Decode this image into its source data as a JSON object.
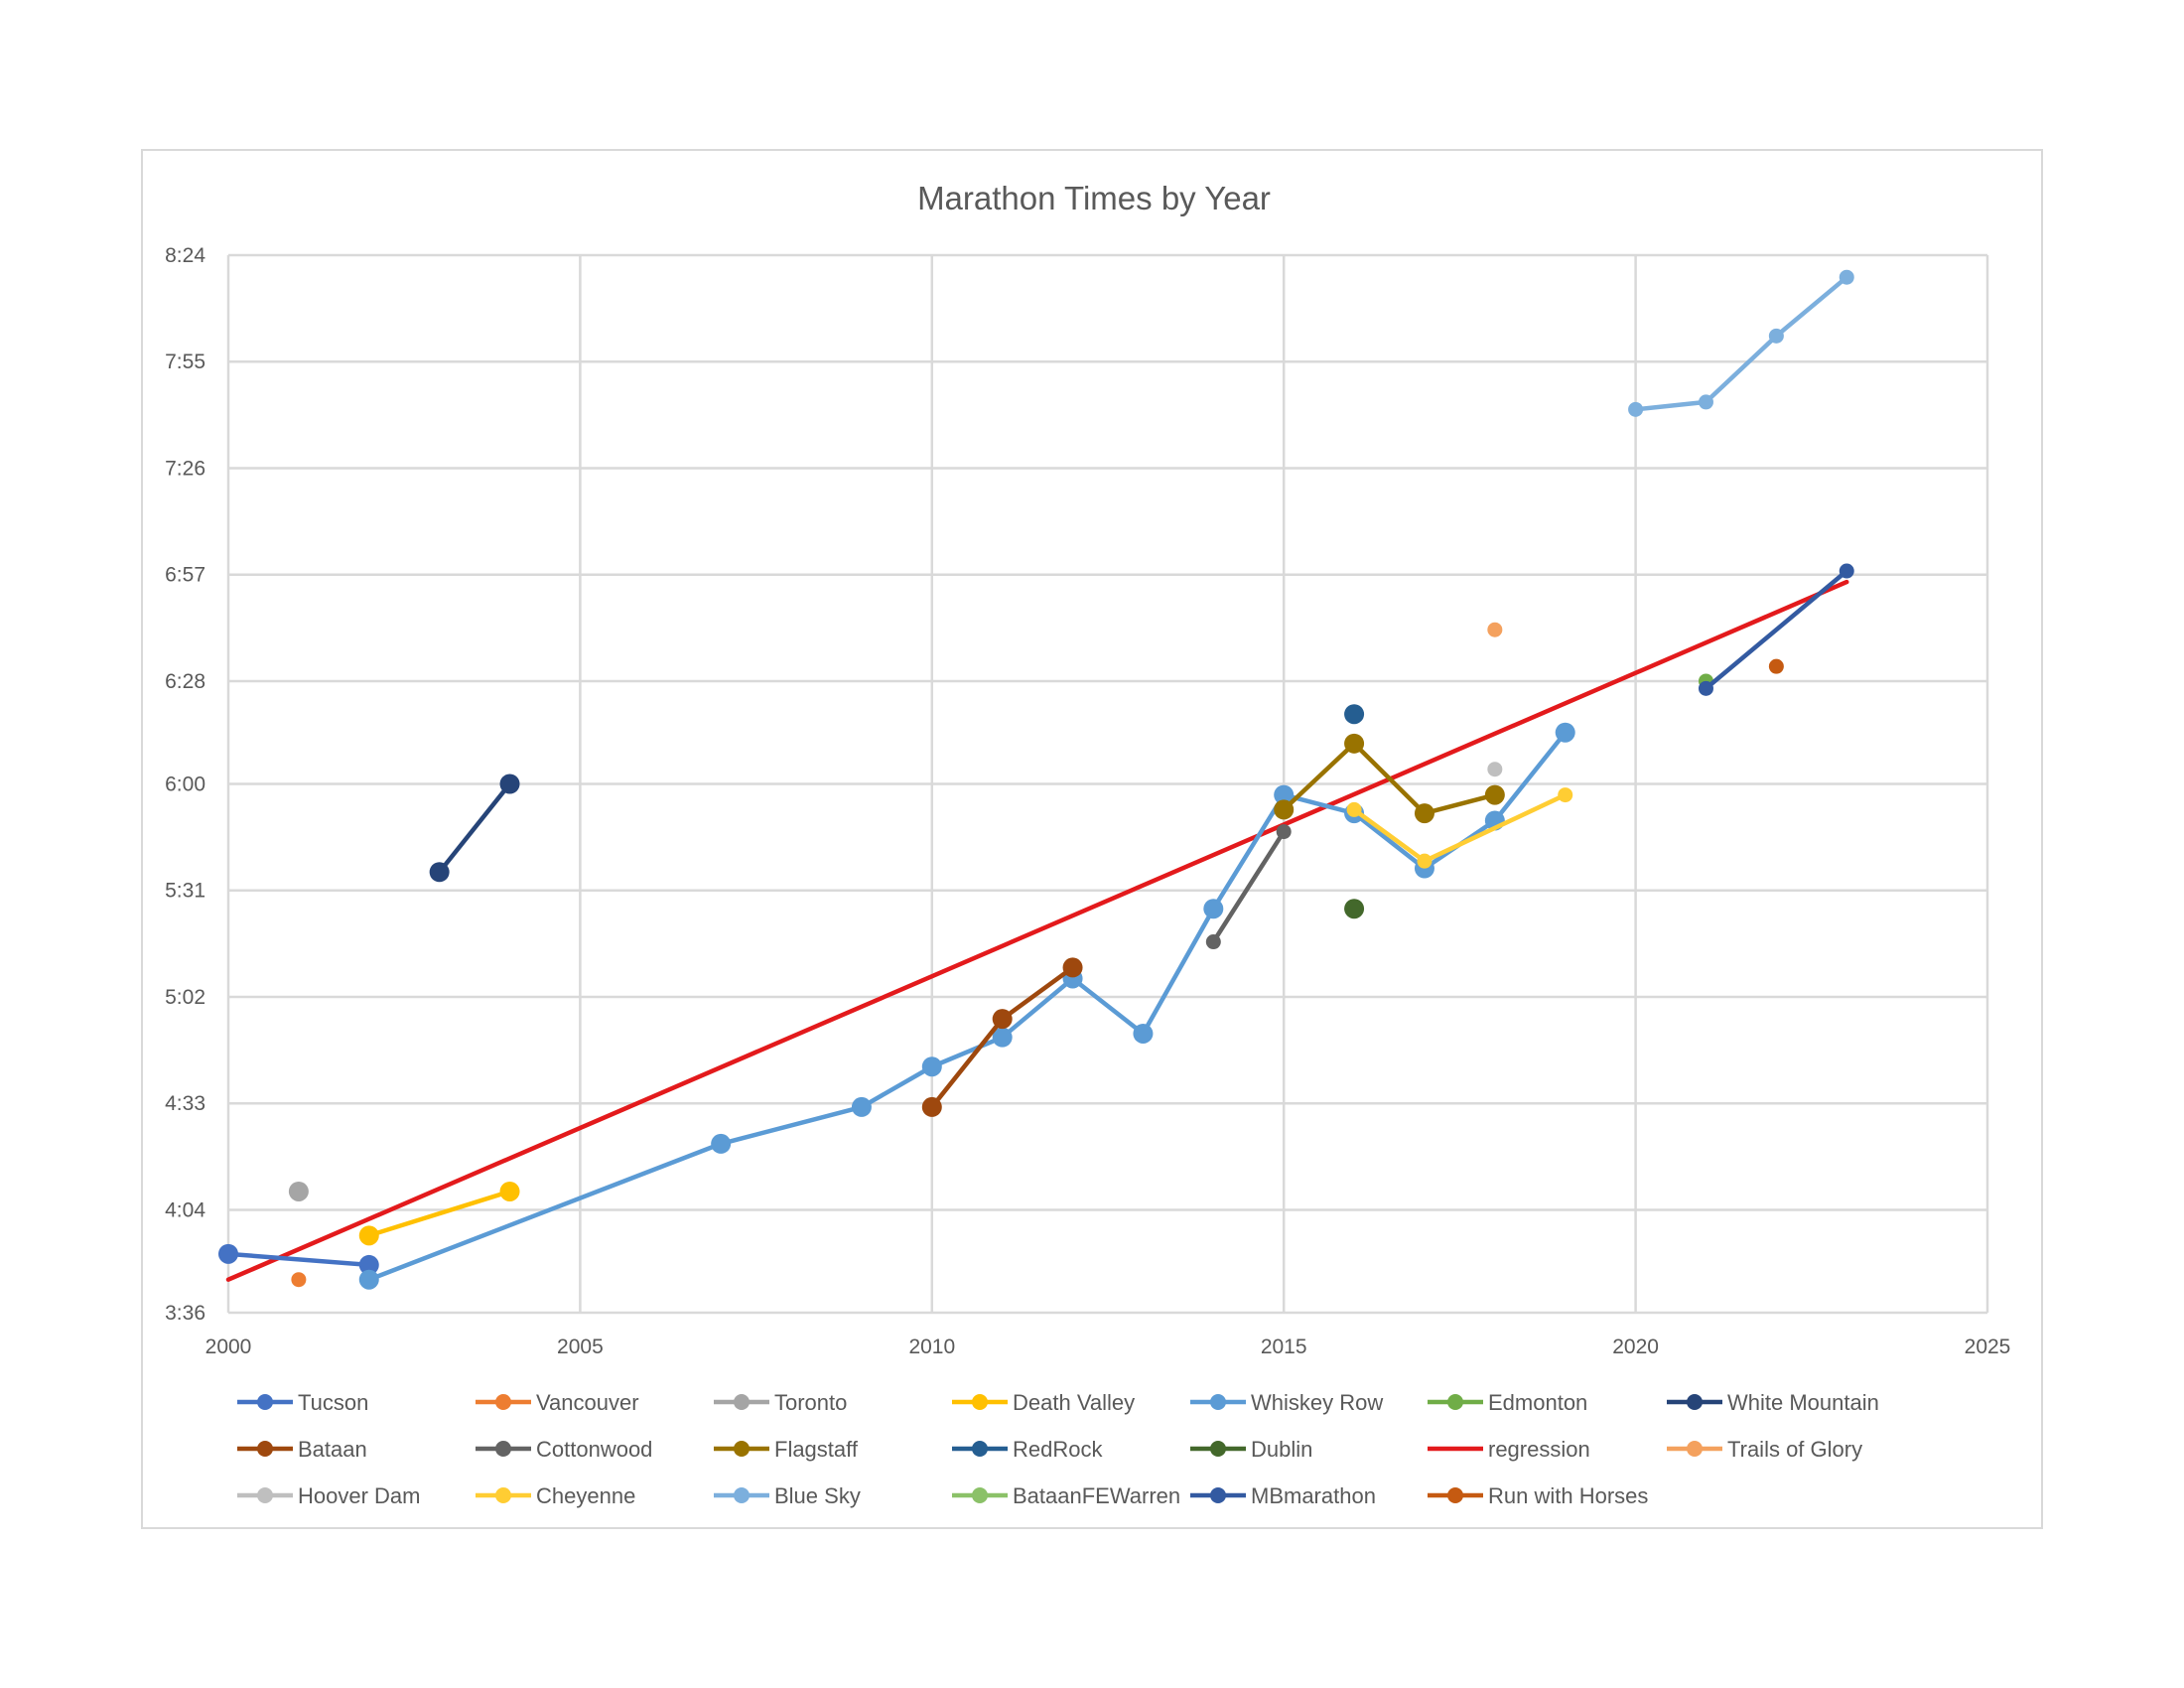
{
  "chart_data": {
    "type": "line",
    "title": "Marathon Times by Year",
    "xlabel": "",
    "ylabel": "",
    "xlim": [
      2000,
      2025
    ],
    "ylim": [
      "3:36",
      "8:24"
    ],
    "x_ticks": [
      "2000",
      "2005",
      "2010",
      "2015",
      "2020",
      "2025"
    ],
    "y_ticks": [
      "3:36",
      "4:04",
      "4:33",
      "5:02",
      "5:31",
      "6:00",
      "6:28",
      "6:57",
      "7:26",
      "7:55",
      "8:24"
    ],
    "grid": true,
    "legend_position": "bottom",
    "series": [
      {
        "name": "Tucson",
        "color": "#4472c4",
        "marker": "large",
        "line": true,
        "points": [
          [
            2000,
            "3:52"
          ],
          [
            2002,
            "3:49"
          ]
        ]
      },
      {
        "name": "Vancouver",
        "color": "#ed7d31",
        "marker": "small",
        "line": true,
        "points": [
          [
            2001,
            "3:45"
          ]
        ]
      },
      {
        "name": "Toronto",
        "color": "#a5a5a5",
        "marker": "large",
        "line": true,
        "points": [
          [
            2001,
            "4:09"
          ]
        ]
      },
      {
        "name": "Death Valley",
        "color": "#ffc000",
        "marker": "large",
        "line": true,
        "points": [
          [
            2002,
            "3:57"
          ],
          [
            2004,
            "4:09"
          ]
        ]
      },
      {
        "name": "Whiskey Row",
        "color": "#5b9bd5",
        "marker": "large",
        "line": true,
        "points": [
          [
            2002,
            "3:45"
          ],
          [
            2007,
            "4:22"
          ],
          [
            2009,
            "4:32"
          ],
          [
            2010,
            "4:43"
          ],
          [
            2011,
            "4:51"
          ],
          [
            2012,
            "5:07"
          ],
          [
            2013,
            "4:52"
          ],
          [
            2014,
            "5:26"
          ],
          [
            2015,
            "5:57"
          ],
          [
            2016,
            "5:52"
          ],
          [
            2017,
            "5:37"
          ],
          [
            2018,
            "5:50"
          ],
          [
            2019,
            "6:14"
          ]
        ]
      },
      {
        "name": "Edmonton",
        "color": "#70ad47",
        "marker": "small",
        "line": true,
        "points": [
          [
            2021,
            "6:28"
          ]
        ]
      },
      {
        "name": "White Mountain",
        "color": "#264478",
        "marker": "large",
        "line": true,
        "points": [
          [
            2003,
            "5:36"
          ],
          [
            2004,
            "6:00"
          ]
        ]
      },
      {
        "name": "Bataan",
        "color": "#9e480e",
        "marker": "large",
        "line": true,
        "points": [
          [
            2010,
            "4:32"
          ],
          [
            2011,
            "4:56"
          ],
          [
            2012,
            "5:10"
          ]
        ]
      },
      {
        "name": "Cottonwood",
        "color": "#636363",
        "marker": "small",
        "line": true,
        "points": [
          [
            2014,
            "5:17"
          ],
          [
            2015,
            "5:47"
          ]
        ]
      },
      {
        "name": "Flagstaff",
        "color": "#997300",
        "marker": "large",
        "line": true,
        "points": [
          [
            2015,
            "5:53"
          ],
          [
            2016,
            "6:11"
          ],
          [
            2017,
            "5:52"
          ],
          [
            2018,
            "5:57"
          ]
        ]
      },
      {
        "name": "RedRock",
        "color": "#255e91",
        "marker": "large",
        "line": true,
        "points": [
          [
            2016,
            "6:19"
          ]
        ]
      },
      {
        "name": "Dublin",
        "color": "#43682b",
        "marker": "large",
        "line": true,
        "points": [
          [
            2016,
            "5:26"
          ]
        ]
      },
      {
        "name": "regression",
        "color": "#e31a1c",
        "marker": "none",
        "line": true,
        "points": [
          [
            2000,
            "3:45"
          ],
          [
            2023,
            "6:55"
          ]
        ]
      },
      {
        "name": "Trails of Glory",
        "color": "#f4a15e",
        "marker": "small",
        "line": true,
        "points": [
          [
            2018,
            "6:42"
          ]
        ]
      },
      {
        "name": "Hoover Dam",
        "color": "#bfbfbf",
        "marker": "small",
        "line": true,
        "points": [
          [
            2018,
            "6:04"
          ]
        ]
      },
      {
        "name": "Cheyenne",
        "color": "#ffcd33",
        "marker": "small",
        "line": true,
        "points": [
          [
            2016,
            "5:53"
          ],
          [
            2017,
            "5:39"
          ],
          [
            2019,
            "5:57"
          ]
        ]
      },
      {
        "name": "Blue Sky",
        "color": "#7cafdd",
        "marker": "small",
        "line": true,
        "points": [
          [
            2020,
            "7:42"
          ],
          [
            2021,
            "7:44"
          ],
          [
            2022,
            "8:02"
          ],
          [
            2023,
            "8:18"
          ]
        ]
      },
      {
        "name": "BataanFEWarren",
        "color": "#8bc168",
        "marker": "small",
        "line": true,
        "points": []
      },
      {
        "name": "MBmarathon",
        "color": "#335aa1",
        "marker": "small",
        "line": true,
        "points": [
          [
            2021,
            "6:26"
          ],
          [
            2023,
            "6:58"
          ]
        ]
      },
      {
        "name": "Run with Horses",
        "color": "#c55a11",
        "marker": "small",
        "line": true,
        "points": [
          [
            2022,
            "6:32"
          ]
        ]
      }
    ]
  }
}
